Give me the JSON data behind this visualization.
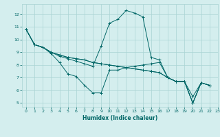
{
  "xlabel": "Humidex (Indice chaleur)",
  "bg_color": "#d4eeee",
  "grid_color": "#aad4d4",
  "line_color": "#006666",
  "xlim": [
    -0.5,
    23
  ],
  "ylim": [
    4.7,
    12.8
  ],
  "xticks": [
    0,
    1,
    2,
    3,
    4,
    5,
    6,
    7,
    8,
    9,
    10,
    11,
    12,
    13,
    14,
    15,
    16,
    17,
    18,
    19,
    20,
    21,
    22,
    23
  ],
  "yticks": [
    5,
    6,
    7,
    8,
    9,
    10,
    11,
    12
  ],
  "series": [
    [
      10.8,
      9.6,
      9.4,
      8.9,
      8.2,
      7.3,
      7.1,
      6.4,
      5.8,
      5.8,
      7.6,
      7.6,
      7.8,
      7.9,
      8.0,
      8.1,
      8.2,
      7.0,
      6.7,
      6.7,
      5.5,
      6.6,
      6.4
    ],
    [
      10.8,
      9.6,
      9.4,
      9.0,
      8.7,
      8.5,
      8.3,
      8.1,
      7.9,
      9.5,
      11.3,
      11.6,
      12.3,
      12.1,
      11.8,
      8.6,
      8.4,
      7.0,
      6.7,
      6.7,
      5.0,
      6.6,
      6.4
    ],
    [
      10.8,
      9.6,
      9.4,
      9.0,
      8.8,
      8.6,
      8.5,
      8.4,
      8.2,
      8.1,
      8.0,
      7.9,
      7.8,
      7.7,
      7.6,
      7.5,
      7.4,
      7.0,
      6.7,
      6.7,
      5.0,
      6.6,
      6.4
    ],
    [
      10.8,
      9.6,
      9.4,
      9.0,
      8.8,
      8.6,
      8.5,
      8.4,
      8.2,
      8.1,
      8.0,
      7.9,
      7.8,
      7.7,
      7.6,
      7.5,
      7.4,
      7.0,
      6.7,
      6.7,
      5.0,
      6.6,
      6.4
    ]
  ]
}
